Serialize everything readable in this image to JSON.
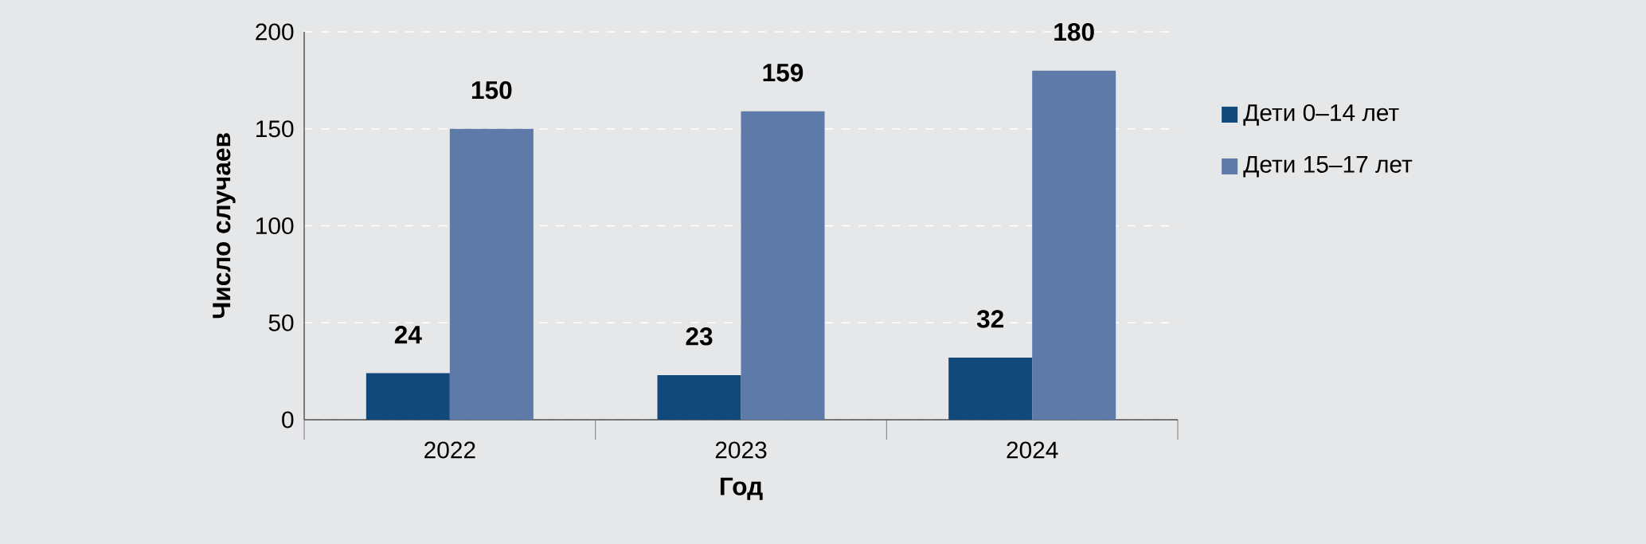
{
  "chart_data": {
    "type": "bar",
    "xlabel": "Год",
    "ylabel": "Число случаев",
    "categories": [
      "2022",
      "2023",
      "2024"
    ],
    "series": [
      {
        "name": "Дети 0–14 лет",
        "color": "#11497a",
        "values": [
          24,
          23,
          32
        ]
      },
      {
        "name": "Дети 15–17 лет",
        "color": "#5e7aa8",
        "values": [
          150,
          159,
          180
        ]
      }
    ],
    "ylim": [
      0,
      200
    ],
    "yticks": [
      0,
      50,
      100,
      150,
      200
    ],
    "grid": "y",
    "legend": "right",
    "data_labels": true
  }
}
